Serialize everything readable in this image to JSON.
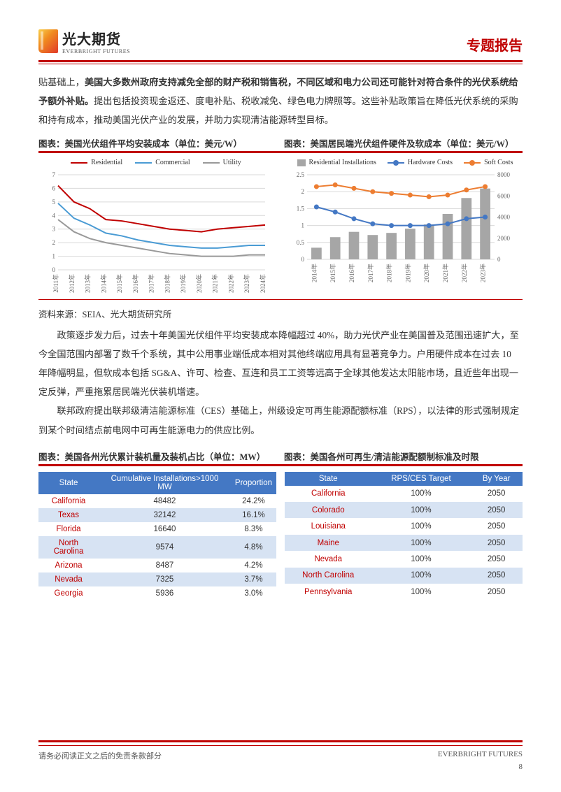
{
  "header": {
    "brand_cn": "光大期货",
    "brand_en": "EVERBRIGHT FUTURES",
    "title": "专题报告"
  },
  "para1_prefix": "贴基础上，",
  "para1_bold": "美国大多数州政府支持减免全部的财产税和销售税，不同区域和电力公司还可能针对符合条件的光伏系统给予额外补贴。",
  "para1_rest": "提出包括投资现金返还、度电补贴、税收减免、绿色电力牌照等。这些补贴政策旨在降低光伏系统的采购和持有成本，推动美国光伏产业的发展，并助力实现清洁能源转型目标。",
  "chart1_title": "图表：美国光伏组件平均安装成本（单位：美元/W）",
  "chart2_title": "图表：美国居民端光伏组件硬件及软成本（单位：美元/W）",
  "chart1": {
    "type": "line",
    "legend": [
      {
        "label": "Residential",
        "color": "#c00000"
      },
      {
        "label": "Commercial",
        "color": "#4a9bd4"
      },
      {
        "label": "Utility",
        "color": "#999999"
      }
    ],
    "x_labels": [
      "2011年",
      "2012年",
      "2013年",
      "2014年",
      "2015年",
      "2016年",
      "2017年",
      "2018年",
      "2019年",
      "2020年",
      "2021年",
      "2022年",
      "2023年",
      "2024年"
    ],
    "ylim": [
      0,
      7
    ],
    "ytick_step": 1,
    "series": {
      "Residential": [
        6.2,
        5.0,
        4.5,
        3.7,
        3.6,
        3.4,
        3.2,
        3.0,
        2.9,
        2.8,
        3.0,
        3.1,
        3.2,
        3.3
      ],
      "Commercial": [
        4.9,
        3.8,
        3.3,
        2.7,
        2.5,
        2.2,
        2.0,
        1.8,
        1.7,
        1.6,
        1.6,
        1.7,
        1.8,
        1.8
      ],
      "Utility": [
        3.7,
        2.8,
        2.3,
        2.0,
        1.8,
        1.6,
        1.4,
        1.2,
        1.1,
        1.0,
        1.0,
        1.0,
        1.1,
        1.1
      ]
    },
    "grid_color": "#d9d9d9",
    "bg": "#ffffff",
    "label_fontsize": 9
  },
  "chart2": {
    "type": "combo",
    "legend": [
      {
        "label": "Residential Installations",
        "type": "bar",
        "color": "#a6a6a6"
      },
      {
        "label": "Hardware Costs",
        "type": "line",
        "color": "#4478c4"
      },
      {
        "label": "Soft Costs",
        "type": "line",
        "color": "#ed7d31"
      }
    ],
    "x_labels": [
      "2014年",
      "2015年",
      "2016年",
      "2017年",
      "2018年",
      "2019年",
      "2020年",
      "2021年",
      "2022年",
      "2023年"
    ],
    "ylim_left": [
      0,
      2.5
    ],
    "ytick_left": 0.5,
    "ylim_right": [
      0,
      8000
    ],
    "ytick_right": 2000,
    "bars": [
      1100,
      2100,
      2600,
      2300,
      2500,
      2900,
      3300,
      4300,
      5800,
      6700
    ],
    "hardware": [
      1.55,
      1.4,
      1.2,
      1.05,
      1.0,
      1.0,
      1.0,
      1.05,
      1.2,
      1.25
    ],
    "soft": [
      2.15,
      2.2,
      2.1,
      2.0,
      1.95,
      1.9,
      1.85,
      1.9,
      2.05,
      2.15
    ],
    "grid_color": "#d9d9d9",
    "bg": "#ffffff",
    "label_fontsize": 9
  },
  "source": "资料来源：SEIA、光大期货研究所",
  "para2": "政策逐步发力后，过去十年美国光伏组件平均安装成本降幅超过 40%，助力光伏产业在美国普及范围迅速扩大，至今全国范围内部署了数千个系统，其中公用事业端低成本相对其他终端应用具有显著竞争力。户用硬件成本在过去 10 年降幅明显，但软成本包括 SG&A、许可、检查、互连和员工工资等远高于全球其他发达太阳能市场，且近些年出现一定反弹，严重拖累居民端光伏装机增速。",
  "para3": "联邦政府提出联邦级清洁能源标准（CES）基础上，州级设定可再生能源配额标准（RPS），以法律的形式强制规定到某个时间结点前电网中可再生能源电力的供应比例。",
  "table1_title": "图表：美国各州光伏累计装机量及装机占比（单位：MW）",
  "table2_title": "图表：美国各州可再生/清洁能源配额制标准及时限",
  "table1": {
    "columns": [
      "State",
      "Cumulative Installations>1000 MW",
      "Proportion"
    ],
    "rows": [
      [
        "California",
        "48482",
        "24.2%"
      ],
      [
        "Texas",
        "32142",
        "16.1%"
      ],
      [
        "Florida",
        "16640",
        "8.3%"
      ],
      [
        "North Carolina",
        "9574",
        "4.8%"
      ],
      [
        "Arizona",
        "8487",
        "4.2%"
      ],
      [
        "Nevada",
        "7325",
        "3.7%"
      ],
      [
        "Georgia",
        "5936",
        "3.0%"
      ]
    ],
    "header_bg": "#4478c4",
    "alt_bg": "#d7e3f3"
  },
  "table2": {
    "columns": [
      "State",
      "RPS/CES Target",
      "By Year"
    ],
    "rows": [
      [
        "California",
        "100%",
        "2050"
      ],
      [
        "Colorado",
        "100%",
        "2050"
      ],
      [
        "Louisiana",
        "100%",
        "2050"
      ],
      [
        "Maine",
        "100%",
        "2050"
      ],
      [
        "Nevada",
        "100%",
        "2050"
      ],
      [
        "North Carolina",
        "100%",
        "2050"
      ],
      [
        "Pennsylvania",
        "100%",
        "2050"
      ]
    ],
    "header_bg": "#4478c4",
    "alt_bg": "#d7e3f3"
  },
  "footer": {
    "left": "请务必阅读正文之后的免责条款部分",
    "right": "EVERBRIGHT FUTURES",
    "page": "8"
  }
}
